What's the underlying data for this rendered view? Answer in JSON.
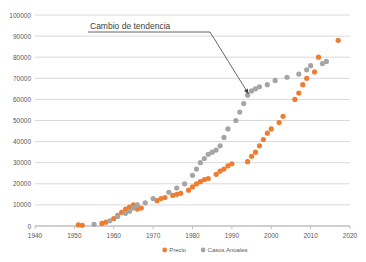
{
  "chart_data": {
    "type": "scatter",
    "annotation": {
      "text": "Cambio de tendencia",
      "x": 1995,
      "y": 64000
    },
    "xlim": [
      1940,
      2020
    ],
    "xticks": [
      1940,
      1950,
      1960,
      1970,
      1980,
      1990,
      2000,
      2010,
      2020
    ],
    "ylim": [
      0,
      100000
    ],
    "yticks": [
      0,
      10000,
      20000,
      30000,
      40000,
      50000,
      60000,
      70000,
      80000,
      90000,
      100000
    ],
    "grid": true,
    "legend": "bottom",
    "series": [
      {
        "name": "Precio",
        "color": "#ed7d31",
        "marker": "circle",
        "x": [
          1951,
          1952,
          1957,
          1958,
          1960,
          1961,
          1962,
          1963,
          1964,
          1965,
          1966,
          1967,
          1971,
          1972,
          1973,
          1975,
          1976,
          1977,
          1979,
          1980,
          1981,
          1982,
          1983,
          1984,
          1986,
          1987,
          1988,
          1989,
          1990,
          1994,
          1995,
          1996,
          1997,
          1998,
          1999,
          2000,
          2002,
          2003,
          2006,
          2007,
          2008,
          2009,
          2011,
          2012,
          2017
        ],
        "values": [
          500,
          300,
          1200,
          1800,
          3500,
          5000,
          6500,
          8000,
          9000,
          10000,
          8000,
          8500,
          12000,
          13000,
          13500,
          14500,
          15000,
          15500,
          17000,
          18500,
          20000,
          21000,
          22000,
          22500,
          24500,
          26000,
          27000,
          28500,
          29500,
          30500,
          33000,
          35000,
          38000,
          41000,
          44000,
          46000,
          49000,
          52000,
          60000,
          63000,
          67000,
          70000,
          73000,
          80000,
          88000
        ]
      },
      {
        "name": "Casos Anuales",
        "color": "#a5a5a5",
        "marker": "circle",
        "x": [
          1955,
          1959,
          1961,
          1963,
          1964,
          1965,
          1966,
          1968,
          1970,
          1974,
          1976,
          1978,
          1980,
          1981,
          1982,
          1983,
          1984,
          1985,
          1986,
          1987,
          1988,
          1989,
          1991,
          1992,
          1993,
          1994,
          1995,
          1996,
          1997,
          1999,
          2001,
          2004,
          2007,
          2009,
          2010,
          2013,
          2014
        ],
        "values": [
          800,
          2500,
          4500,
          6000,
          7000,
          8500,
          10000,
          11000,
          13000,
          16000,
          18000,
          20000,
          24000,
          27000,
          30000,
          32000,
          34000,
          35000,
          36000,
          38000,
          42000,
          46000,
          50000,
          54000,
          58000,
          62000,
          64000,
          65000,
          66000,
          67000,
          69000,
          70500,
          72000,
          74000,
          76000,
          77000,
          78000
        ]
      }
    ]
  }
}
